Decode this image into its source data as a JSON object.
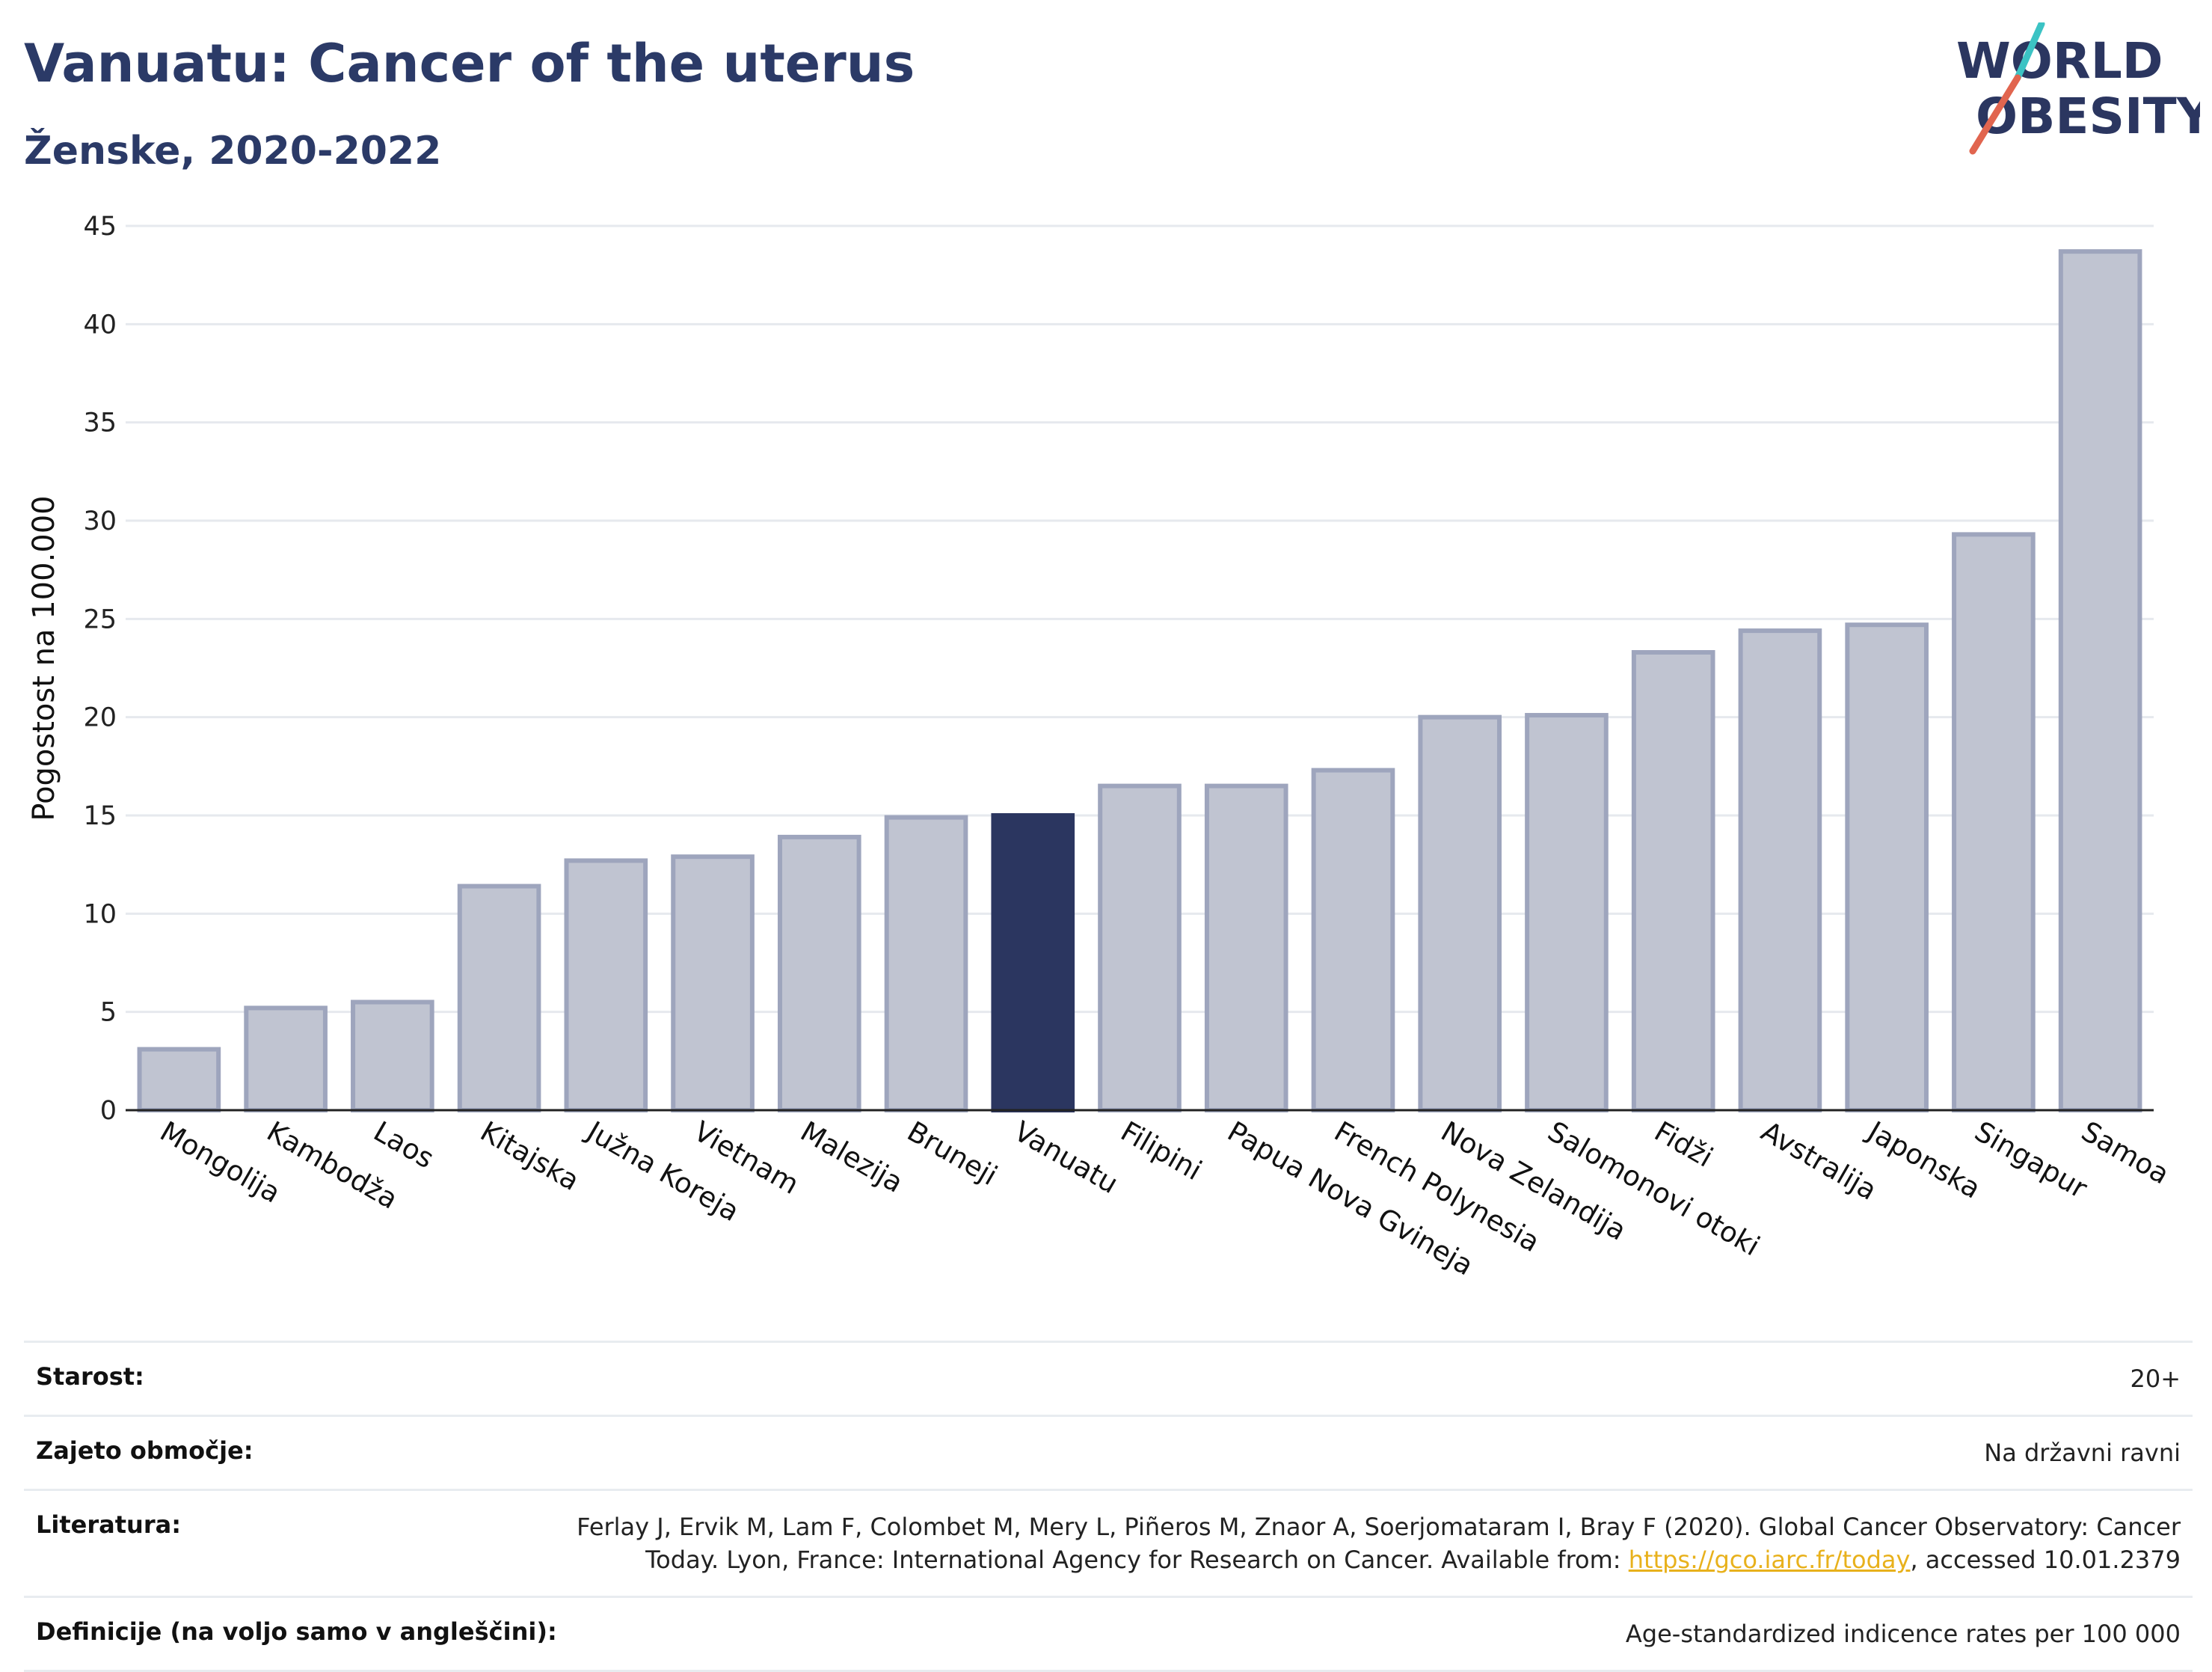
{
  "header": {
    "title": "Vanuatu: Cancer of the uterus",
    "subtitle": "Ženske, 2020-2022",
    "logo_line1": "WORLD",
    "logo_line2": "OBESITY"
  },
  "colors": {
    "highlight": "#2b3660",
    "bar": "#c0c4d1",
    "bar_border": "#9ea5bd",
    "title": "#2b3a67",
    "link": "#e8b11c"
  },
  "chart_data": {
    "type": "bar",
    "title": "Vanuatu: Cancer of the uterus",
    "ylabel": "Pogostost na 100.000",
    "ylim": [
      0,
      45
    ],
    "yticks": [
      0,
      5,
      10,
      15,
      20,
      25,
      30,
      35,
      40,
      45
    ],
    "highlight": "Vanuatu",
    "categories": [
      "Mongolija",
      "Kambodža",
      "Laos",
      "Kitajska",
      "Južna Koreja",
      "Vietnam",
      "Malezija",
      "Bruneji",
      "Vanuatu",
      "Filipini",
      "Papua Nova Gvineja",
      "French Polynesia",
      "Nova Zelandija",
      "Salomonovi otoki",
      "Fidži",
      "Avstralija",
      "Japonska",
      "Singapur",
      "Samoa"
    ],
    "values": [
      3.1,
      5.2,
      5.5,
      11.4,
      12.7,
      12.9,
      13.9,
      14.9,
      15.0,
      16.5,
      16.5,
      17.3,
      20.0,
      20.1,
      23.3,
      24.4,
      24.7,
      29.3,
      43.7
    ],
    "grid": true
  },
  "info": {
    "age_label": "Starost:",
    "age_value": "20+",
    "coverage_label": "Zajeto območje:",
    "coverage_value": "Na državni ravni",
    "refs_label": "Literatura:",
    "refs_text_1": "Ferlay J, Ervik M, Lam F, Colombet M, Mery L, Piñeros M, Znaor A, Soerjomataram I, Bray F (2020). Global Cancer Observatory: Cancer Today. Lyon, France: International Agency for Research on Cancer. Available from: ",
    "refs_link": "https://gco.iarc.fr/today",
    "refs_text_2": ", accessed 10.01.2379",
    "defs_label": "Definicije (na voljo samo v angleščini):",
    "defs_value": "Age-standardized indicence rates per 100 000"
  }
}
